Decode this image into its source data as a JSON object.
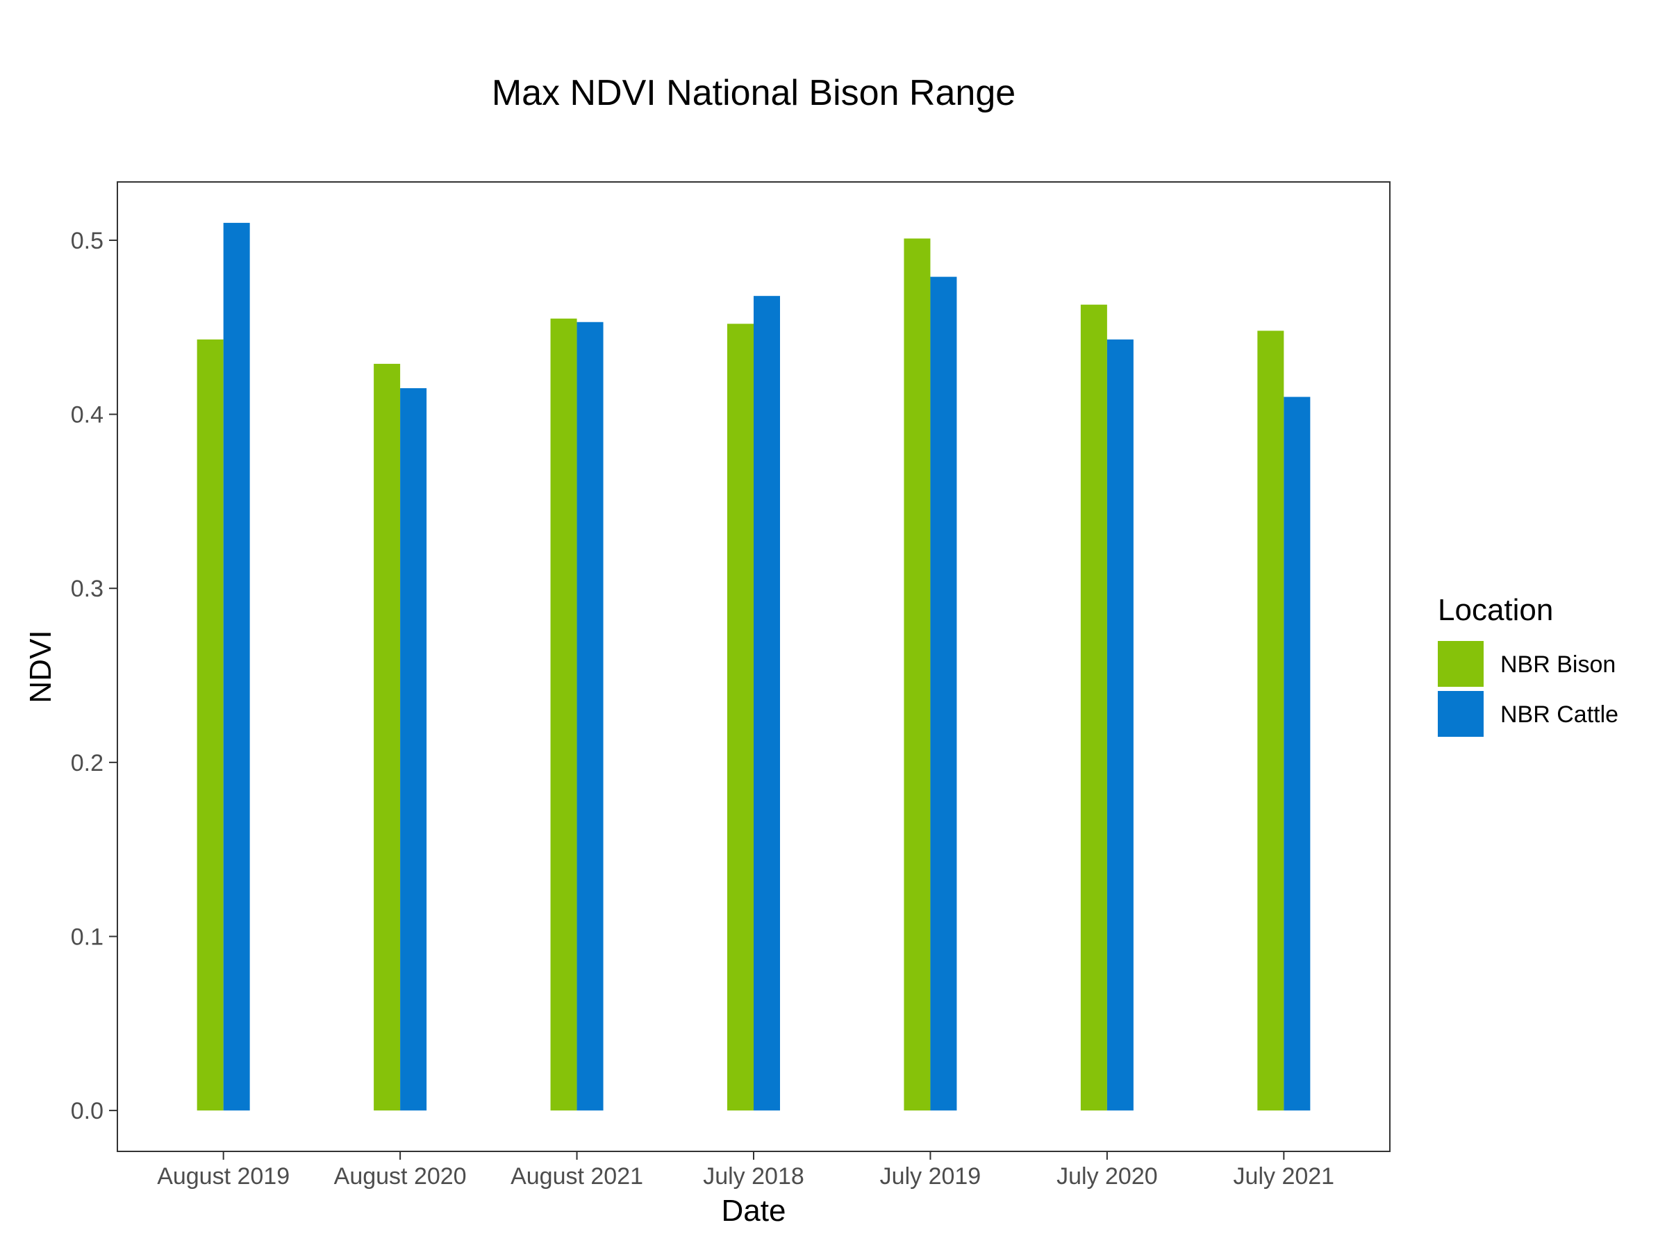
{
  "chart_data": {
    "type": "bar",
    "title": "Max NDVI National Bison Range",
    "xlabel": "Date",
    "ylabel": "NDVI",
    "categories": [
      "August 2019",
      "August 2020",
      "August 2021",
      "July 2018",
      "July 2019",
      "July 2020",
      "July 2021"
    ],
    "series": [
      {
        "name": "NBR Bison",
        "color": "#86c20a",
        "values": [
          0.443,
          0.429,
          0.455,
          0.452,
          0.501,
          0.463,
          0.448
        ]
      },
      {
        "name": "NBR Cattle",
        "color": "#0678cf",
        "values": [
          0.51,
          0.415,
          0.453,
          0.468,
          0.479,
          0.443,
          0.41
        ]
      }
    ],
    "ylim": [
      -0.0235,
      0.5335
    ],
    "yticks": [
      0.0,
      0.1,
      0.2,
      0.3,
      0.4,
      0.5
    ],
    "ytick_labels": [
      "0.0",
      "0.1",
      "0.2",
      "0.3",
      "0.4",
      "0.5"
    ],
    "grid": false,
    "legend": {
      "title": "Location",
      "placement": "right"
    }
  }
}
